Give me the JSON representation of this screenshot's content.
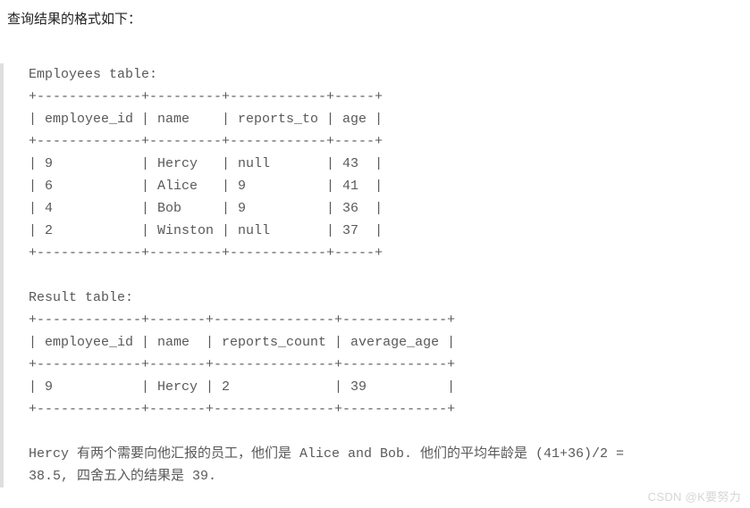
{
  "heading": "查询结果的格式如下：",
  "code": {
    "line01": "Employees table:",
    "line02": "+-------------+---------+------------+-----+",
    "line03": "| employee_id | name    | reports_to | age |",
    "line04": "+-------------+---------+------------+-----+",
    "line05": "| 9           | Hercy   | null       | 43  |",
    "line06": "| 6           | Alice   | 9          | 41  |",
    "line07": "| 4           | Bob     | 9          | 36  |",
    "line08": "| 2           | Winston | null       | 37  |",
    "line09": "+-------------+---------+------------+-----+",
    "line10": "",
    "line11": "Result table:",
    "line12": "+-------------+-------+---------------+-------------+",
    "line13": "| employee_id | name  | reports_count | average_age |",
    "line14": "+-------------+-------+---------------+-------------+",
    "line15": "| 9           | Hercy | 2             | 39          |",
    "line16": "+-------------+-------+---------------+-------------+",
    "line17": "",
    "line18": "Hercy 有两个需要向他汇报的员工，他们是 Alice and Bob. 他们的平均年龄是 (41+36)/2 =",
    "line19": "38.5, 四舍五入的结果是 39."
  },
  "watermark": "CSDN @K要努力",
  "styles": {
    "body_bg": "#ffffff",
    "heading_color": "#222222",
    "heading_fontsize": 15,
    "code_border_color": "#dedede",
    "code_color": "#595959",
    "code_fontsize": 15,
    "code_lineheight": 25,
    "watermark_color": "#d6d6d6",
    "watermark_fontsize": 13
  }
}
